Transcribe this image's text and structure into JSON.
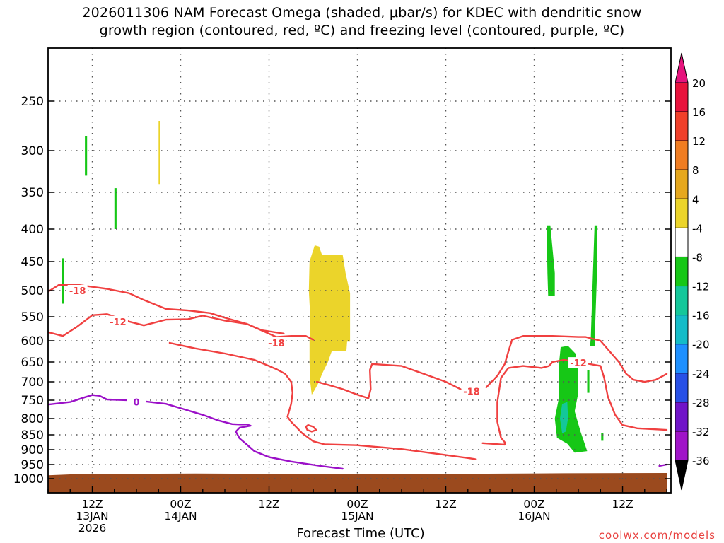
{
  "title": {
    "line1": "2026011306 NAM Forecast Omega (shaded, μbar/s) for KDEC with dendritic snow",
    "line2": "growth region (contoured, red, ºC) and freezing level (contoured, purple, ºC)"
  },
  "credit": "coolwx.com/models",
  "chart_data": {
    "type": "heatmap",
    "title": "2026011306 NAM Forecast Omega (shaded, μbar/s) for KDEC with dendritic snow growth region (contoured, red, ºC) and freezing level (contoured, purple, ºC)",
    "xlabel": "Forecast Time (UTC)",
    "ylabel": "",
    "x_range_hours_after_init": [
      0,
      84
    ],
    "y_range_hpa": [
      1025,
      200
    ],
    "y_scale": "reversed (pressure)",
    "grid": true,
    "yticks": [
      250,
      300,
      350,
      400,
      450,
      500,
      550,
      600,
      650,
      700,
      750,
      800,
      850,
      900,
      950,
      1000
    ],
    "xticks": [
      {
        "h": 6,
        "label1": "12Z",
        "label2": "13JAN",
        "label3": "2026"
      },
      {
        "h": 18,
        "label1": "00Z",
        "label2": "14JAN",
        "label3": ""
      },
      {
        "h": 30,
        "label1": "12Z",
        "label2": "",
        "label3": ""
      },
      {
        "h": 42,
        "label1": "00Z",
        "label2": "15JAN",
        "label3": ""
      },
      {
        "h": 54,
        "label1": "12Z",
        "label2": "",
        "label3": ""
      },
      {
        "h": 66,
        "label1": "00Z",
        "label2": "16JAN",
        "label3": ""
      },
      {
        "h": 78,
        "label1": "12Z",
        "label2": "",
        "label3": ""
      }
    ],
    "colorbar": {
      "labels": [
        "20",
        "16",
        "12",
        "8",
        "4",
        "-4",
        "-8",
        "-12",
        "-16",
        "-20",
        "-24",
        "-28",
        "-32",
        "-36"
      ],
      "colors": [
        "#e8123c",
        "#f0402a",
        "#f07d22",
        "#e6a81e",
        "#ebd42a",
        "#ffffff",
        "#16c716",
        "#14c79a",
        "#14bcc8",
        "#1e90ff",
        "#2850e6",
        "#7014c8",
        "#a014c8",
        "#a0a0a0"
      ],
      "top_arrow_color": "#e6147d",
      "bottom_arrow_color": "#000000"
    },
    "omega_regions": [
      {
        "value_class": "4 to 8",
        "color": "#ebd42a",
        "polygon": [
          [
            35.8,
            735
          ],
          [
            35.6,
            700
          ],
          [
            35.5,
            650
          ],
          [
            35.5,
            600
          ],
          [
            35.6,
            550
          ],
          [
            35.4,
            500
          ],
          [
            35.5,
            450
          ],
          [
            36.2,
            425
          ],
          [
            36.8,
            427
          ],
          [
            37.2,
            440
          ],
          [
            40.0,
            440
          ],
          [
            40.4,
            470
          ],
          [
            41.0,
            505
          ],
          [
            41.0,
            602
          ],
          [
            40.6,
            602
          ],
          [
            40.5,
            625
          ],
          [
            38.5,
            625
          ],
          [
            38.0,
            650
          ],
          [
            37.2,
            680
          ],
          [
            36.8,
            700
          ],
          [
            36.2,
            722
          ]
        ]
      },
      {
        "value_class": "4 to 8",
        "color": "#ebd42a",
        "polygon": [
          [
            15.0,
            270
          ],
          [
            15.2,
            270
          ],
          [
            15.2,
            340
          ],
          [
            15.0,
            340
          ]
        ]
      },
      {
        "value_class": "-4 to -8",
        "color": "#16c716",
        "polygon": [
          [
            5.0,
            285
          ],
          [
            5.3,
            285
          ],
          [
            5.3,
            330
          ],
          [
            5.0,
            330
          ]
        ]
      },
      {
        "value_class": "-4 to -8",
        "color": "#16c716",
        "polygon": [
          [
            9.0,
            345
          ],
          [
            9.3,
            345
          ],
          [
            9.3,
            400
          ],
          [
            9.0,
            400
          ]
        ]
      },
      {
        "value_class": "-4 to -8",
        "color": "#16c716",
        "polygon": [
          [
            1.9,
            445
          ],
          [
            2.2,
            445
          ],
          [
            2.2,
            525
          ],
          [
            1.9,
            525
          ]
        ]
      },
      {
        "value_class": "-4 to -8",
        "color": "#16c716",
        "polygon": [
          [
            67.7,
            395
          ],
          [
            68.2,
            395
          ],
          [
            68.8,
            470
          ],
          [
            68.8,
            510
          ],
          [
            67.9,
            510
          ],
          [
            67.8,
            470
          ]
        ]
      },
      {
        "value_class": "-4 to -8",
        "color": "#16c716",
        "polygon": [
          [
            74.2,
            395
          ],
          [
            74.6,
            395
          ],
          [
            74.5,
            480
          ],
          [
            74.3,
            560
          ],
          [
            74.3,
            612
          ],
          [
            73.6,
            612
          ],
          [
            73.7,
            590
          ],
          [
            73.9,
            500
          ]
        ]
      },
      {
        "value_class": "-4 to -8",
        "color": "#16c716",
        "polygon": [
          [
            69.4,
            650
          ],
          [
            69.6,
            615
          ],
          [
            70.6,
            612
          ],
          [
            71.6,
            630
          ],
          [
            71.9,
            660
          ],
          [
            72.0,
            730
          ],
          [
            71.5,
            780
          ],
          [
            72.3,
            840
          ],
          [
            73.2,
            905
          ],
          [
            71.5,
            910
          ],
          [
            70.5,
            880
          ],
          [
            69.1,
            860
          ],
          [
            68.8,
            800
          ],
          [
            69.3,
            750
          ],
          [
            69.4,
            700
          ]
        ]
      },
      {
        "value_class": "-8 to -12",
        "color": "#14c79a",
        "polygon": [
          [
            69.8,
            760
          ],
          [
            70.5,
            755
          ],
          [
            70.6,
            800
          ],
          [
            70.3,
            840
          ],
          [
            69.8,
            845
          ],
          [
            69.5,
            800
          ]
        ]
      },
      {
        "value_class": "-4 to -8",
        "color": "#16c716",
        "polygon": [
          [
            73.2,
            670
          ],
          [
            73.5,
            670
          ],
          [
            73.5,
            730
          ],
          [
            73.2,
            730
          ]
        ]
      },
      {
        "value_class": "-4 to -8",
        "color": "#16c716",
        "polygon": [
          [
            75.1,
            845
          ],
          [
            75.4,
            845
          ],
          [
            75.4,
            870
          ],
          [
            75.1,
            870
          ]
        ]
      }
    ],
    "red_contours": [
      {
        "label": "-18",
        "label_at": [
          4.0,
          500
        ],
        "points": [
          [
            0,
            502
          ],
          [
            1.5,
            490
          ],
          [
            4,
            490
          ],
          [
            8,
            497
          ],
          [
            11,
            505
          ],
          [
            13,
            518
          ],
          [
            16,
            535
          ],
          [
            19,
            538
          ],
          [
            22,
            543
          ],
          [
            24,
            552
          ],
          [
            27,
            565
          ],
          [
            31,
            592
          ],
          [
            33,
            590
          ],
          [
            35,
            590
          ],
          [
            36,
            598
          ]
        ]
      },
      {
        "label": "-12",
        "label_at": [
          9.5,
          560
        ],
        "points": [
          [
            0,
            582
          ],
          [
            2,
            590
          ],
          [
            4,
            570
          ],
          [
            6,
            547
          ],
          [
            8,
            545
          ],
          [
            11,
            560
          ],
          [
            13,
            568
          ],
          [
            16,
            556
          ],
          [
            19,
            555
          ],
          [
            21,
            548
          ],
          [
            24,
            558
          ],
          [
            27,
            565
          ],
          [
            29,
            578
          ],
          [
            32,
            585
          ]
        ]
      },
      {
        "label": "-18",
        "label_at": [
          31.0,
          605
        ],
        "points": [
          [
            16.5,
            605
          ],
          [
            20,
            618
          ],
          [
            24,
            630
          ],
          [
            28,
            645
          ],
          [
            31,
            668
          ],
          [
            32.2,
            680
          ],
          [
            33.0,
            700
          ],
          [
            33.2,
            730
          ],
          [
            33.0,
            760
          ],
          [
            32.5,
            795
          ],
          [
            33,
            810
          ],
          [
            34.5,
            845
          ],
          [
            36.0,
            872
          ],
          [
            37.5,
            882
          ],
          [
            42,
            885
          ],
          [
            48,
            898
          ],
          [
            54,
            918
          ],
          [
            57,
            928
          ],
          [
            58,
            932
          ]
        ]
      },
      {
        "label": "",
        "label_at": [
          0,
          0
        ],
        "points": [
          [
            36.5,
            700
          ],
          [
            38,
            708
          ],
          [
            40,
            720
          ],
          [
            42,
            735
          ],
          [
            43.5,
            745
          ],
          [
            43.8,
            720
          ],
          [
            43.7,
            670
          ],
          [
            44.0,
            655
          ],
          [
            48,
            660
          ],
          [
            51,
            680
          ],
          [
            54,
            700
          ],
          [
            56,
            720
          ]
        ]
      },
      {
        "label": "-18",
        "label_at": [
          57.5,
          726
        ],
        "points": [
          [
            59.5,
            715
          ],
          [
            61,
            685
          ],
          [
            62,
            655
          ],
          [
            62.5,
            625
          ],
          [
            63.0,
            598
          ],
          [
            64.5,
            590
          ],
          [
            68.5,
            590
          ],
          [
            72,
            592
          ],
          [
            73.0,
            592
          ],
          [
            75,
            600
          ],
          [
            76,
            620
          ],
          [
            77.5,
            650
          ],
          [
            78.5,
            680
          ],
          [
            79.5,
            695
          ],
          [
            81,
            700
          ],
          [
            82.5,
            695
          ],
          [
            84,
            680
          ]
        ]
      },
      {
        "label": "-12",
        "label_at": [
          72.0,
          652
        ],
        "points": [
          [
            59,
            878
          ],
          [
            62,
            883
          ],
          [
            62.0,
            875
          ],
          [
            61.5,
            860
          ],
          [
            61.0,
            810
          ],
          [
            61.0,
            755
          ],
          [
            61.5,
            690
          ],
          [
            62.5,
            665
          ],
          [
            64.5,
            660
          ],
          [
            67,
            665
          ],
          [
            68.0,
            660
          ],
          [
            68.5,
            650
          ],
          [
            70,
            645
          ],
          [
            72,
            650
          ],
          [
            75,
            660
          ],
          [
            75.5,
            690
          ],
          [
            76,
            740
          ],
          [
            77,
            790
          ],
          [
            78,
            820
          ],
          [
            80,
            830
          ],
          [
            84,
            835
          ]
        ]
      },
      {
        "label": "",
        "label_at": [
          0,
          0
        ],
        "points": [
          [
            35.0,
            825
          ],
          [
            35.3,
            820
          ],
          [
            36.0,
            825
          ],
          [
            36.4,
            835
          ],
          [
            35.8,
            840
          ],
          [
            35.2,
            835
          ],
          [
            35.0,
            825
          ]
        ]
      }
    ],
    "purple_contours": [
      {
        "label": "0",
        "label_at": [
          12.0,
          755
        ],
        "points": [
          [
            0,
            762
          ],
          [
            3,
            755
          ],
          [
            5,
            742
          ],
          [
            6,
            736
          ],
          [
            7,
            738
          ],
          [
            8,
            748
          ],
          [
            11,
            750
          ],
          [
            13,
            753
          ],
          [
            16,
            760
          ],
          [
            18,
            772
          ],
          [
            21,
            790
          ],
          [
            23,
            805
          ],
          [
            25,
            817
          ],
          [
            26,
            818
          ],
          [
            27,
            818
          ],
          [
            27.5,
            822
          ],
          [
            26,
            828
          ],
          [
            25.5,
            840
          ],
          [
            26,
            862
          ],
          [
            27,
            883
          ],
          [
            28,
            905
          ],
          [
            30,
            925
          ],
          [
            33,
            940
          ],
          [
            37,
            955
          ],
          [
            40,
            965
          ]
        ]
      },
      {
        "label": "",
        "label_at": [
          0,
          0
        ],
        "points": [
          [
            83,
            955
          ],
          [
            84,
            950
          ]
        ]
      }
    ],
    "terrain": {
      "color": "#9b4a1e",
      "bottom_hpa": 1025,
      "top_hpa": 985
    }
  }
}
